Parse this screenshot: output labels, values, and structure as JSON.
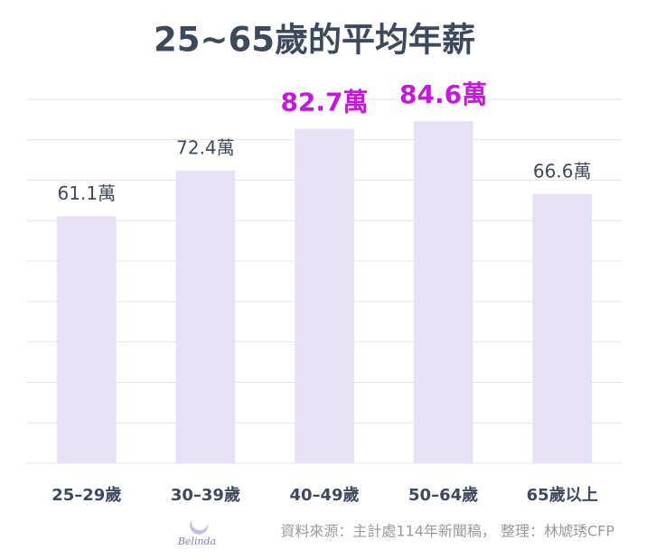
{
  "chart_data": {
    "type": "bar",
    "title": "25~65歲的平均年薪",
    "categories": [
      "25–29歲",
      "30–39歲",
      "40–49歲",
      "50–64歲",
      "65歲以上"
    ],
    "values": [
      61.1,
      72.4,
      82.7,
      84.6,
      66.6
    ],
    "value_labels": [
      "61.1萬",
      "72.4萬",
      "82.7萬",
      "84.6萬",
      "66.6萬"
    ],
    "value_label_colors": [
      "#3d4a5c",
      "#3d4a5c",
      "#c21bd6",
      "#c21bd6",
      "#3d4a5c"
    ],
    "color": "#e6e1f7",
    "ylim": [
      0,
      90
    ],
    "yticks": [
      0,
      10,
      20,
      30,
      40,
      50,
      60,
      70,
      80,
      90
    ],
    "grid": true,
    "source": "資料來源：主計處114年新聞稿， 整理：林虓琇CFP",
    "logo_text": "Belinda"
  }
}
